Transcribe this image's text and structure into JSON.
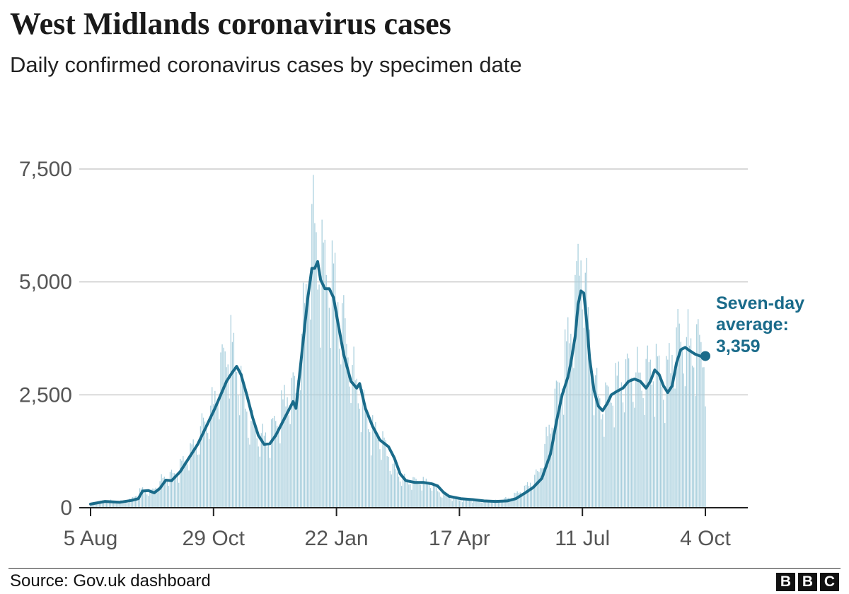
{
  "header": {
    "title": "West Midlands coronavirus cases",
    "subtitle": "Daily confirmed coronavirus cases by specimen date"
  },
  "footer": {
    "source": "Source: Gov.uk dashboard",
    "logo_letters": [
      "B",
      "B",
      "C"
    ]
  },
  "colors": {
    "line": "#1a6b8a",
    "bars": "#a9cfdd",
    "grid": "#cccccc",
    "axis": "#222222",
    "tick_text": "#555555",
    "annotation": "#1a6b8a"
  },
  "chart_data": {
    "type": "bar",
    "title": "West Midlands coronavirus cases",
    "subtitle": "Daily confirmed coronavirus cases by specimen date",
    "xlabel": "",
    "ylabel": "",
    "ylim": [
      0,
      7500
    ],
    "grid": true,
    "y_ticks": [
      {
        "value": 0,
        "label": "0"
      },
      {
        "value": 2500,
        "label": "2,500"
      },
      {
        "value": 5000,
        "label": "5,000"
      },
      {
        "value": 7500,
        "label": "7,500"
      }
    ],
    "x_range_days": [
      0,
      425
    ],
    "x_ticks": [
      {
        "day": 0,
        "label": "5 Aug"
      },
      {
        "day": 85,
        "label": "29 Oct"
      },
      {
        "day": 170,
        "label": "22 Jan"
      },
      {
        "day": 255,
        "label": "17 Apr"
      },
      {
        "day": 340,
        "label": "11 Jul"
      },
      {
        "day": 425,
        "label": "4 Oct"
      }
    ],
    "series": [
      {
        "name": "Daily cases",
        "kind": "bars",
        "points": [
          [
            0,
            90
          ],
          [
            10,
            150
          ],
          [
            20,
            130
          ],
          [
            28,
            170
          ],
          [
            35,
            380
          ],
          [
            42,
            330
          ],
          [
            50,
            620
          ],
          [
            58,
            700
          ],
          [
            65,
            1000
          ],
          [
            72,
            1300
          ],
          [
            78,
            1750
          ],
          [
            84,
            2100
          ],
          [
            88,
            2600
          ],
          [
            92,
            3100
          ],
          [
            96,
            3550
          ],
          [
            100,
            3100
          ],
          [
            105,
            2500
          ],
          [
            110,
            1800
          ],
          [
            118,
            1450
          ],
          [
            125,
            1600
          ],
          [
            132,
            2100
          ],
          [
            136,
            2400
          ],
          [
            142,
            2500
          ],
          [
            148,
            4200
          ],
          [
            152,
            5600
          ],
          [
            154,
            5900
          ],
          [
            157,
            5400
          ],
          [
            162,
            5000
          ],
          [
            166,
            4900
          ],
          [
            170,
            4600
          ],
          [
            175,
            3800
          ],
          [
            180,
            3000
          ],
          [
            188,
            2200
          ],
          [
            195,
            1650
          ],
          [
            202,
            1400
          ],
          [
            210,
            800
          ],
          [
            216,
            600
          ],
          [
            222,
            560
          ],
          [
            230,
            550
          ],
          [
            236,
            500
          ],
          [
            242,
            300
          ],
          [
            250,
            200
          ],
          [
            260,
            170
          ],
          [
            270,
            140
          ],
          [
            280,
            140
          ],
          [
            290,
            210
          ],
          [
            300,
            400
          ],
          [
            310,
            750
          ],
          [
            318,
            1800
          ],
          [
            325,
            2700
          ],
          [
            330,
            3500
          ],
          [
            335,
            4300
          ],
          [
            338,
            5200
          ],
          [
            340,
            5500
          ],
          [
            344,
            4000
          ],
          [
            348,
            2700
          ],
          [
            352,
            2200
          ],
          [
            358,
            2300
          ],
          [
            364,
            2650
          ],
          [
            370,
            2800
          ],
          [
            376,
            2850
          ],
          [
            382,
            2700
          ],
          [
            388,
            3050
          ],
          [
            392,
            2900
          ],
          [
            397,
            2600
          ],
          [
            402,
            3300
          ],
          [
            406,
            3550
          ],
          [
            410,
            3500
          ],
          [
            416,
            3400
          ],
          [
            420,
            3400
          ],
          [
            425,
            3350
          ]
        ]
      },
      {
        "name": "Seven-day average",
        "kind": "line",
        "points": [
          [
            0,
            80
          ],
          [
            10,
            140
          ],
          [
            20,
            120
          ],
          [
            28,
            160
          ],
          [
            33,
            200
          ],
          [
            36,
            370
          ],
          [
            40,
            380
          ],
          [
            44,
            330
          ],
          [
            48,
            430
          ],
          [
            52,
            610
          ],
          [
            56,
            600
          ],
          [
            62,
            800
          ],
          [
            68,
            1100
          ],
          [
            74,
            1400
          ],
          [
            80,
            1800
          ],
          [
            86,
            2200
          ],
          [
            90,
            2500
          ],
          [
            94,
            2800
          ],
          [
            98,
            3000
          ],
          [
            101,
            3130
          ],
          [
            104,
            2950
          ],
          [
            108,
            2500
          ],
          [
            112,
            2000
          ],
          [
            116,
            1600
          ],
          [
            120,
            1400
          ],
          [
            124,
            1420
          ],
          [
            128,
            1600
          ],
          [
            132,
            1850
          ],
          [
            136,
            2100
          ],
          [
            140,
            2350
          ],
          [
            142,
            2200
          ],
          [
            146,
            3400
          ],
          [
            150,
            4600
          ],
          [
            153,
            5300
          ],
          [
            155,
            5300
          ],
          [
            157,
            5450
          ],
          [
            159,
            5050
          ],
          [
            162,
            4850
          ],
          [
            165,
            4850
          ],
          [
            168,
            4650
          ],
          [
            171,
            4100
          ],
          [
            175,
            3400
          ],
          [
            180,
            2800
          ],
          [
            184,
            2650
          ],
          [
            186,
            2750
          ],
          [
            190,
            2200
          ],
          [
            195,
            1800
          ],
          [
            200,
            1500
          ],
          [
            206,
            1350
          ],
          [
            210,
            1100
          ],
          [
            214,
            750
          ],
          [
            218,
            600
          ],
          [
            224,
            560
          ],
          [
            230,
            560
          ],
          [
            236,
            530
          ],
          [
            240,
            480
          ],
          [
            244,
            340
          ],
          [
            248,
            250
          ],
          [
            256,
            200
          ],
          [
            264,
            180
          ],
          [
            272,
            150
          ],
          [
            280,
            140
          ],
          [
            288,
            150
          ],
          [
            294,
            200
          ],
          [
            300,
            320
          ],
          [
            306,
            450
          ],
          [
            312,
            650
          ],
          [
            318,
            1200
          ],
          [
            322,
            1900
          ],
          [
            326,
            2500
          ],
          [
            330,
            2900
          ],
          [
            332,
            3200
          ],
          [
            335,
            3800
          ],
          [
            337,
            4500
          ],
          [
            339,
            4800
          ],
          [
            341,
            4750
          ],
          [
            343,
            4100
          ],
          [
            345,
            3300
          ],
          [
            348,
            2600
          ],
          [
            351,
            2250
          ],
          [
            354,
            2150
          ],
          [
            357,
            2300
          ],
          [
            360,
            2500
          ],
          [
            364,
            2580
          ],
          [
            368,
            2650
          ],
          [
            372,
            2800
          ],
          [
            376,
            2850
          ],
          [
            380,
            2800
          ],
          [
            384,
            2650
          ],
          [
            387,
            2800
          ],
          [
            390,
            3050
          ],
          [
            393,
            2950
          ],
          [
            396,
            2700
          ],
          [
            399,
            2550
          ],
          [
            402,
            2700
          ],
          [
            405,
            3200
          ],
          [
            408,
            3500
          ],
          [
            411,
            3550
          ],
          [
            414,
            3480
          ],
          [
            418,
            3400
          ],
          [
            422,
            3350
          ],
          [
            425,
            3359
          ]
        ]
      }
    ],
    "annotation": {
      "lines": [
        "Seven-day",
        "average:",
        "3,359"
      ],
      "value": 3359,
      "day": 425
    }
  }
}
